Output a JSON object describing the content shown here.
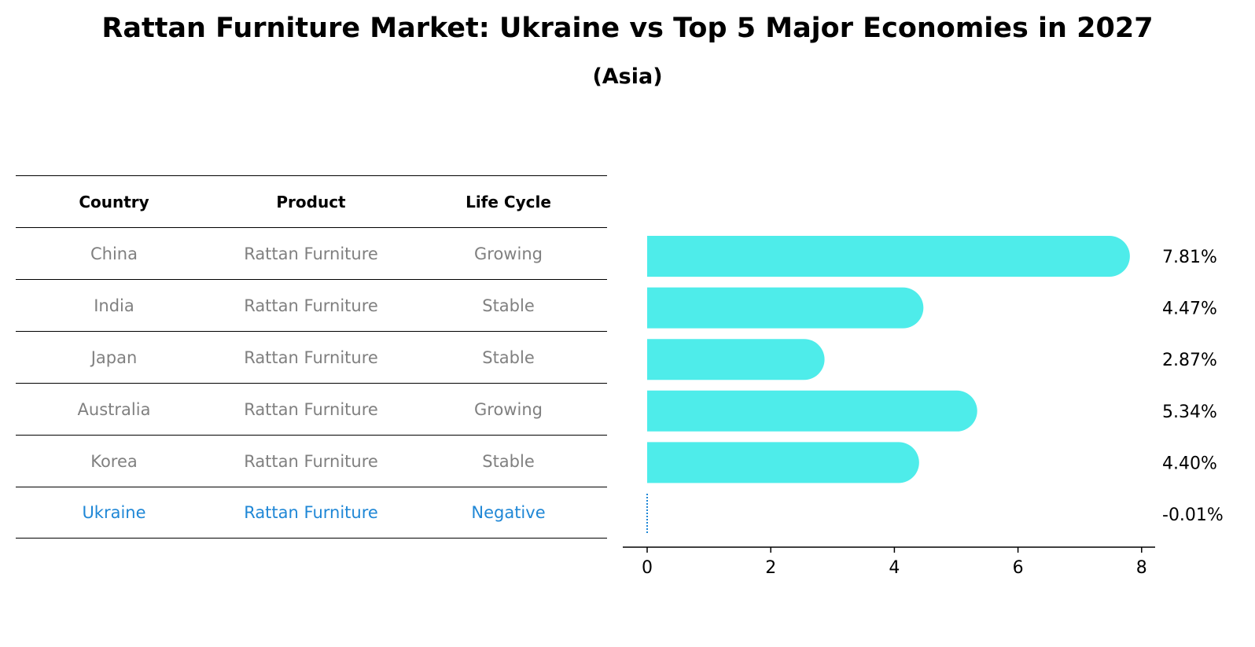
{
  "title": "Rattan Furniture Market: Ukraine vs Top 5 Major Economies in 2027",
  "subtitle": "(Asia)",
  "table": {
    "headers": [
      "Country",
      "Product",
      "Life Cycle"
    ],
    "rows": [
      {
        "country": "China",
        "product": "Rattan Furniture",
        "life_cycle": "Growing"
      },
      {
        "country": "India",
        "product": "Rattan Furniture",
        "life_cycle": "Stable"
      },
      {
        "country": "Japan",
        "product": "Rattan Furniture",
        "life_cycle": "Stable"
      },
      {
        "country": "Australia",
        "product": "Rattan Furniture",
        "life_cycle": "Growing"
      },
      {
        "country": "Korea",
        "product": "Rattan Furniture",
        "life_cycle": "Stable"
      },
      {
        "country": "Ukraine",
        "product": "Rattan Furniture",
        "life_cycle": "Negative"
      }
    ]
  },
  "colors": {
    "bar": "#4eecea",
    "highlight": "#1f87d6",
    "muted_text": "#808080"
  },
  "chart_data": {
    "type": "bar",
    "orientation": "horizontal",
    "categories": [
      "China",
      "India",
      "Japan",
      "Australia",
      "Korea",
      "Ukraine"
    ],
    "values": [
      7.81,
      4.47,
      2.87,
      5.34,
      4.4,
      -0.01
    ],
    "value_labels": [
      "7.81%",
      "4.47%",
      "2.87%",
      "5.34%",
      "4.40%",
      "-0.01%"
    ],
    "xticks": [
      0,
      2,
      4,
      6,
      8
    ],
    "xtick_labels": [
      "0",
      "2",
      "4",
      "6",
      "8"
    ],
    "xlim": [
      -0.4,
      8.2
    ],
    "xlabel": "",
    "ylabel": "",
    "grid": false
  }
}
